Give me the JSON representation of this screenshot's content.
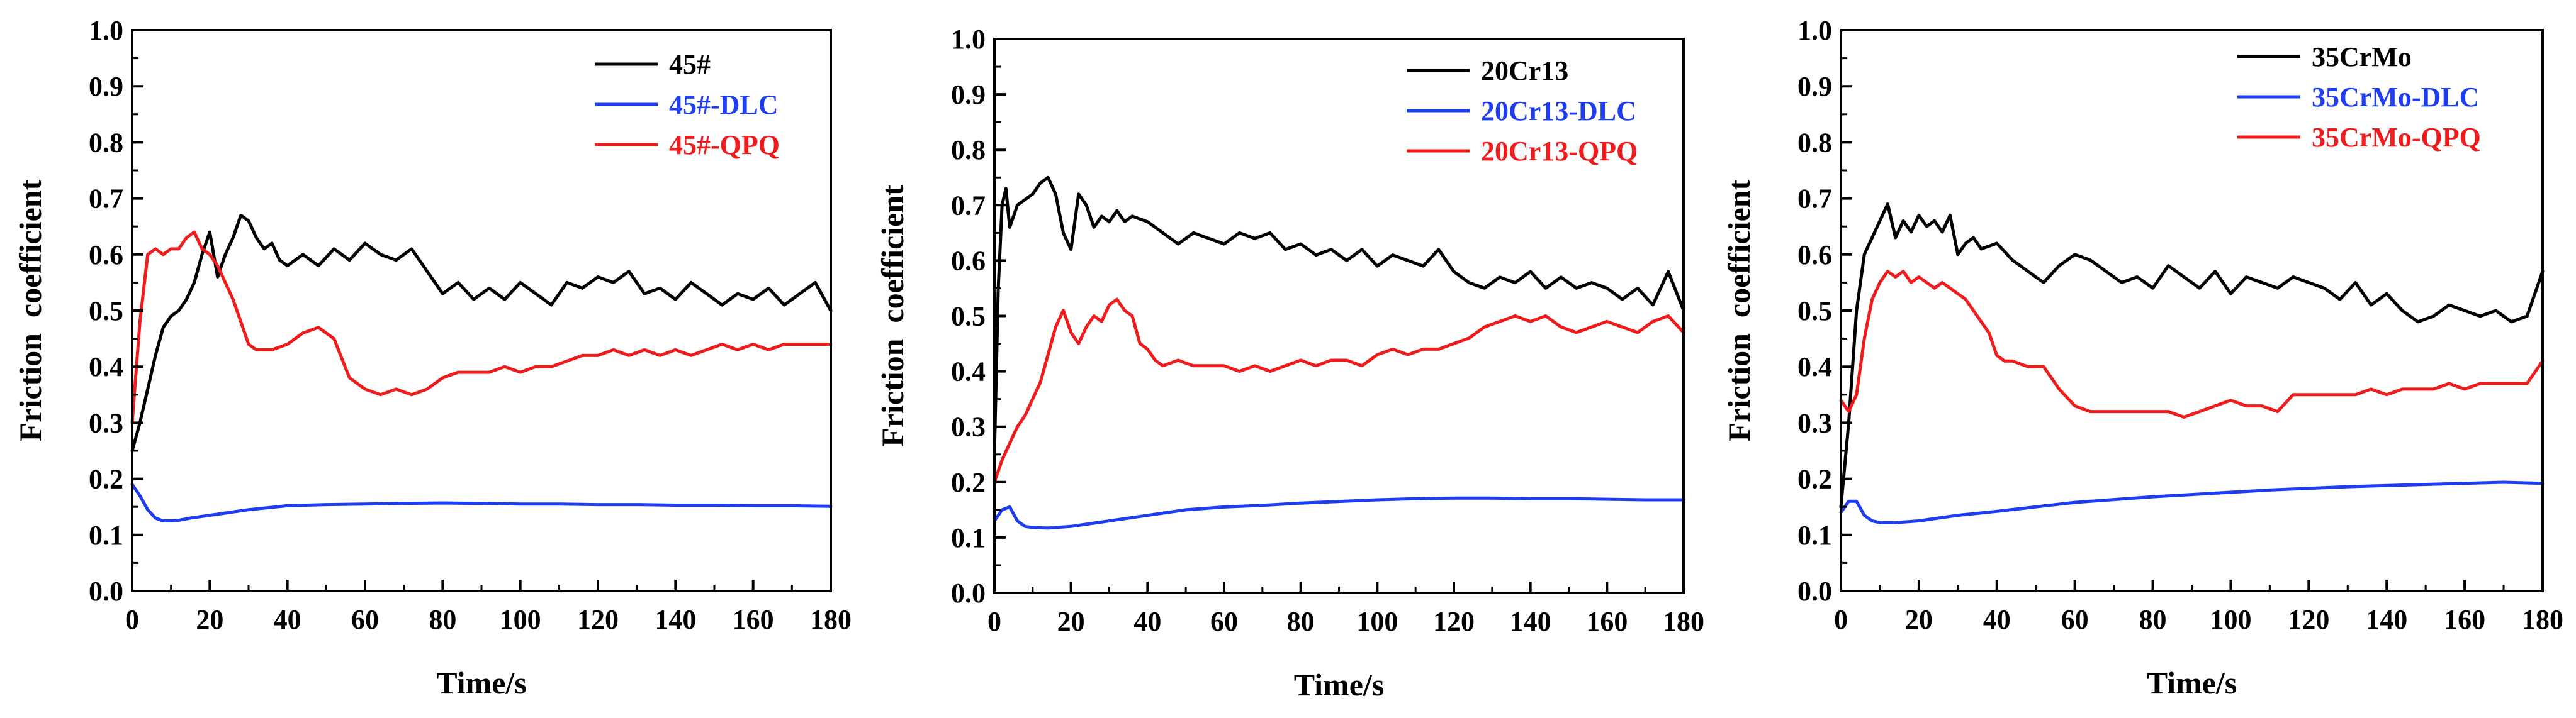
{
  "figure": {
    "colors": {
      "black": "#000000",
      "blue": "#1f3df0",
      "red": "#ee1c1c"
    }
  },
  "chart_data": [
    {
      "type": "line",
      "xlabel": "Time/s",
      "ylabel": "Friction  coefficient",
      "xlim": [
        0,
        180
      ],
      "ylim": [
        0.0,
        1.0
      ],
      "xticks": [
        0,
        20,
        40,
        60,
        80,
        100,
        120,
        140,
        160,
        180
      ],
      "yticks": [
        "0.0",
        "0.1",
        "0.2",
        "0.3",
        "0.4",
        "0.5",
        "0.6",
        "0.7",
        "0.8",
        "0.9",
        "1.0"
      ],
      "legend_position": "top-right",
      "series": [
        {
          "name": "45#",
          "color": "#000000",
          "x": [
            0,
            2,
            4,
            6,
            8,
            10,
            12,
            14,
            16,
            18,
            20,
            22,
            24,
            26,
            28,
            30,
            32,
            34,
            36,
            38,
            40,
            44,
            48,
            52,
            56,
            60,
            64,
            68,
            72,
            76,
            80,
            84,
            88,
            92,
            96,
            100,
            104,
            108,
            112,
            116,
            120,
            124,
            128,
            132,
            136,
            140,
            144,
            148,
            152,
            156,
            160,
            164,
            168,
            172,
            176,
            180
          ],
          "y": [
            0.25,
            0.3,
            0.36,
            0.42,
            0.47,
            0.49,
            0.5,
            0.52,
            0.55,
            0.6,
            0.64,
            0.56,
            0.6,
            0.63,
            0.67,
            0.66,
            0.63,
            0.61,
            0.62,
            0.59,
            0.58,
            0.6,
            0.58,
            0.61,
            0.59,
            0.62,
            0.6,
            0.59,
            0.61,
            0.57,
            0.53,
            0.55,
            0.52,
            0.54,
            0.52,
            0.55,
            0.53,
            0.51,
            0.55,
            0.54,
            0.56,
            0.55,
            0.57,
            0.53,
            0.54,
            0.52,
            0.55,
            0.53,
            0.51,
            0.53,
            0.52,
            0.54,
            0.51,
            0.53,
            0.55,
            0.5
          ]
        },
        {
          "name": "45#-DLC",
          "color": "#1f3df0",
          "x": [
            0,
            2,
            4,
            6,
            8,
            10,
            12,
            15,
            20,
            25,
            30,
            40,
            50,
            60,
            70,
            80,
            90,
            100,
            110,
            120,
            130,
            140,
            150,
            160,
            170,
            180
          ],
          "y": [
            0.19,
            0.17,
            0.145,
            0.13,
            0.125,
            0.125,
            0.126,
            0.13,
            0.135,
            0.14,
            0.145,
            0.152,
            0.154,
            0.155,
            0.156,
            0.157,
            0.156,
            0.155,
            0.155,
            0.154,
            0.154,
            0.153,
            0.153,
            0.152,
            0.152,
            0.151
          ]
        },
        {
          "name": "45#-QPQ",
          "color": "#ee1c1c",
          "x": [
            0,
            2,
            4,
            6,
            8,
            10,
            12,
            14,
            16,
            18,
            20,
            22,
            24,
            26,
            28,
            30,
            32,
            36,
            40,
            44,
            48,
            52,
            56,
            60,
            64,
            68,
            72,
            76,
            80,
            84,
            88,
            92,
            96,
            100,
            104,
            108,
            112,
            116,
            120,
            124,
            128,
            132,
            136,
            140,
            144,
            148,
            152,
            156,
            160,
            164,
            168,
            172,
            176,
            180
          ],
          "y": [
            0.3,
            0.48,
            0.6,
            0.61,
            0.6,
            0.61,
            0.61,
            0.63,
            0.64,
            0.61,
            0.6,
            0.58,
            0.55,
            0.52,
            0.48,
            0.44,
            0.43,
            0.43,
            0.44,
            0.46,
            0.47,
            0.45,
            0.38,
            0.36,
            0.35,
            0.36,
            0.35,
            0.36,
            0.38,
            0.39,
            0.39,
            0.39,
            0.4,
            0.39,
            0.4,
            0.4,
            0.41,
            0.42,
            0.42,
            0.43,
            0.42,
            0.43,
            0.42,
            0.43,
            0.42,
            0.43,
            0.44,
            0.43,
            0.44,
            0.43,
            0.44,
            0.44,
            0.44,
            0.44
          ]
        }
      ]
    },
    {
      "type": "line",
      "xlabel": "Time/s",
      "ylabel": "Friction  coefficient",
      "xlim": [
        0,
        180
      ],
      "ylim": [
        0.0,
        1.0
      ],
      "xticks": [
        0,
        20,
        40,
        60,
        80,
        100,
        120,
        140,
        160,
        180
      ],
      "yticks": [
        "0.0",
        "0.1",
        "0.2",
        "0.3",
        "0.4",
        "0.5",
        "0.6",
        "0.7",
        "0.8",
        "0.9",
        "1.0"
      ],
      "legend_position": "top-right",
      "series": [
        {
          "name": "20Cr13",
          "color": "#000000",
          "x": [
            0,
            1,
            2,
            3,
            4,
            5,
            6,
            8,
            10,
            12,
            14,
            16,
            18,
            20,
            22,
            24,
            26,
            28,
            30,
            32,
            34,
            36,
            40,
            44,
            48,
            52,
            56,
            60,
            64,
            68,
            72,
            76,
            80,
            84,
            88,
            92,
            96,
            100,
            104,
            108,
            112,
            116,
            120,
            124,
            128,
            132,
            136,
            140,
            144,
            148,
            152,
            156,
            160,
            164,
            168,
            172,
            176,
            180
          ],
          "y": [
            0.25,
            0.55,
            0.7,
            0.73,
            0.66,
            0.68,
            0.7,
            0.71,
            0.72,
            0.74,
            0.75,
            0.72,
            0.65,
            0.62,
            0.72,
            0.7,
            0.66,
            0.68,
            0.67,
            0.69,
            0.67,
            0.68,
            0.67,
            0.65,
            0.63,
            0.65,
            0.64,
            0.63,
            0.65,
            0.64,
            0.65,
            0.62,
            0.63,
            0.61,
            0.62,
            0.6,
            0.62,
            0.59,
            0.61,
            0.6,
            0.59,
            0.62,
            0.58,
            0.56,
            0.55,
            0.57,
            0.56,
            0.58,
            0.55,
            0.57,
            0.55,
            0.56,
            0.55,
            0.53,
            0.55,
            0.52,
            0.58,
            0.51
          ]
        },
        {
          "name": "20Cr13-DLC",
          "color": "#1f3df0",
          "x": [
            0,
            2,
            4,
            6,
            8,
            10,
            14,
            20,
            25,
            30,
            40,
            50,
            60,
            70,
            80,
            90,
            100,
            110,
            120,
            130,
            140,
            150,
            160,
            170,
            180
          ],
          "y": [
            0.13,
            0.15,
            0.155,
            0.13,
            0.12,
            0.118,
            0.117,
            0.12,
            0.125,
            0.13,
            0.14,
            0.15,
            0.155,
            0.158,
            0.162,
            0.165,
            0.168,
            0.17,
            0.171,
            0.171,
            0.17,
            0.17,
            0.169,
            0.168,
            0.168
          ]
        },
        {
          "name": "20Cr13-QPQ",
          "color": "#ee1c1c",
          "x": [
            0,
            2,
            4,
            6,
            8,
            10,
            12,
            14,
            16,
            18,
            20,
            22,
            24,
            26,
            28,
            30,
            32,
            34,
            36,
            38,
            40,
            42,
            44,
            48,
            52,
            56,
            60,
            64,
            68,
            72,
            76,
            80,
            84,
            88,
            92,
            96,
            100,
            104,
            108,
            112,
            116,
            120,
            124,
            128,
            132,
            136,
            140,
            144,
            148,
            152,
            156,
            160,
            164,
            168,
            172,
            176,
            180
          ],
          "y": [
            0.2,
            0.24,
            0.27,
            0.3,
            0.32,
            0.35,
            0.38,
            0.43,
            0.48,
            0.51,
            0.47,
            0.45,
            0.48,
            0.5,
            0.49,
            0.52,
            0.53,
            0.51,
            0.5,
            0.45,
            0.44,
            0.42,
            0.41,
            0.42,
            0.41,
            0.41,
            0.41,
            0.4,
            0.41,
            0.4,
            0.41,
            0.42,
            0.41,
            0.42,
            0.42,
            0.41,
            0.43,
            0.44,
            0.43,
            0.44,
            0.44,
            0.45,
            0.46,
            0.48,
            0.49,
            0.5,
            0.49,
            0.5,
            0.48,
            0.47,
            0.48,
            0.49,
            0.48,
            0.47,
            0.49,
            0.5,
            0.47
          ]
        }
      ]
    },
    {
      "type": "line",
      "xlabel": "Time/s",
      "ylabel": "Friction  coefficient",
      "xlim": [
        0,
        180
      ],
      "ylim": [
        0.0,
        1.0
      ],
      "xticks": [
        0,
        20,
        40,
        60,
        80,
        100,
        120,
        140,
        160,
        180
      ],
      "yticks": [
        "0.0",
        "0.1",
        "0.2",
        "0.3",
        "0.4",
        "0.5",
        "0.6",
        "0.7",
        "0.8",
        "0.9",
        "1.0"
      ],
      "legend_position": "top-right",
      "series": [
        {
          "name": "35CrMo",
          "color": "#000000",
          "x": [
            0,
            2,
            4,
            6,
            8,
            10,
            12,
            14,
            16,
            18,
            20,
            22,
            24,
            26,
            28,
            30,
            32,
            34,
            36,
            40,
            44,
            48,
            52,
            56,
            60,
            64,
            68,
            72,
            76,
            80,
            84,
            88,
            92,
            96,
            100,
            104,
            108,
            112,
            116,
            120,
            124,
            128,
            132,
            136,
            140,
            144,
            148,
            152,
            156,
            160,
            164,
            168,
            172,
            176,
            180
          ],
          "y": [
            0.15,
            0.3,
            0.5,
            0.6,
            0.63,
            0.66,
            0.69,
            0.63,
            0.66,
            0.64,
            0.67,
            0.65,
            0.66,
            0.64,
            0.67,
            0.6,
            0.62,
            0.63,
            0.61,
            0.62,
            0.59,
            0.57,
            0.55,
            0.58,
            0.6,
            0.59,
            0.57,
            0.55,
            0.56,
            0.54,
            0.58,
            0.56,
            0.54,
            0.57,
            0.53,
            0.56,
            0.55,
            0.54,
            0.56,
            0.55,
            0.54,
            0.52,
            0.55,
            0.51,
            0.53,
            0.5,
            0.48,
            0.49,
            0.51,
            0.5,
            0.49,
            0.5,
            0.48,
            0.49,
            0.57
          ]
        },
        {
          "name": "35CrMo-DLC",
          "color": "#1f3df0",
          "x": [
            0,
            2,
            4,
            6,
            8,
            10,
            14,
            20,
            25,
            30,
            40,
            50,
            60,
            70,
            80,
            90,
            100,
            110,
            120,
            130,
            140,
            150,
            160,
            170,
            180
          ],
          "y": [
            0.14,
            0.16,
            0.16,
            0.135,
            0.125,
            0.122,
            0.122,
            0.125,
            0.13,
            0.135,
            0.142,
            0.15,
            0.158,
            0.163,
            0.168,
            0.172,
            0.176,
            0.18,
            0.183,
            0.186,
            0.188,
            0.19,
            0.192,
            0.194,
            0.192
          ]
        },
        {
          "name": "35CrMo-QPQ",
          "color": "#ee1c1c",
          "x": [
            0,
            2,
            4,
            6,
            8,
            10,
            12,
            14,
            16,
            18,
            20,
            22,
            24,
            26,
            28,
            30,
            32,
            34,
            36,
            38,
            40,
            42,
            44,
            48,
            52,
            56,
            60,
            64,
            68,
            72,
            76,
            80,
            84,
            88,
            92,
            96,
            100,
            104,
            108,
            112,
            116,
            120,
            124,
            128,
            132,
            136,
            140,
            144,
            148,
            152,
            156,
            160,
            164,
            168,
            172,
            176,
            180
          ],
          "y": [
            0.34,
            0.32,
            0.35,
            0.45,
            0.52,
            0.55,
            0.57,
            0.56,
            0.57,
            0.55,
            0.56,
            0.55,
            0.54,
            0.55,
            0.54,
            0.53,
            0.52,
            0.5,
            0.48,
            0.46,
            0.42,
            0.41,
            0.41,
            0.4,
            0.4,
            0.36,
            0.33,
            0.32,
            0.32,
            0.32,
            0.32,
            0.32,
            0.32,
            0.31,
            0.32,
            0.33,
            0.34,
            0.33,
            0.33,
            0.32,
            0.35,
            0.35,
            0.35,
            0.35,
            0.35,
            0.36,
            0.35,
            0.36,
            0.36,
            0.36,
            0.37,
            0.36,
            0.37,
            0.37,
            0.37,
            0.37,
            0.41
          ]
        }
      ]
    }
  ]
}
